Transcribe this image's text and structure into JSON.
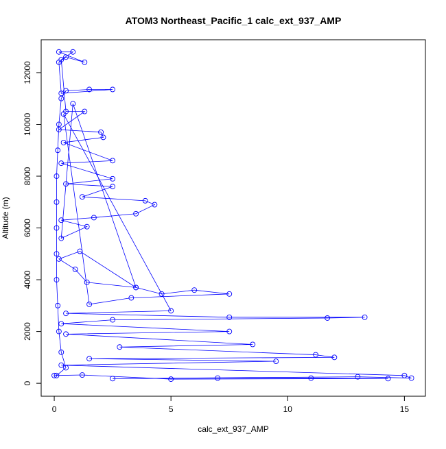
{
  "chart_data": {
    "type": "scatter",
    "connect": true,
    "marker": "circle",
    "title": "ATOM3 Northeast_Pacific_1 calc_ext_937_AMP",
    "xlabel": "calc_ext_937_AMP",
    "ylabel": "Altitude (m)",
    "color": "#0000ff",
    "xlim": [
      -0.56,
      15.9
    ],
    "ylim": [
      -500,
      13270
    ],
    "xticks": [
      0,
      5,
      10,
      15
    ],
    "yticks": [
      0,
      2000,
      4000,
      6000,
      8000,
      10000,
      12000
    ],
    "x": [
      0.1,
      0.5,
      0.3,
      0.2,
      0.15,
      0.1,
      0.1,
      0.1,
      0.1,
      0.1,
      0.15,
      0.2,
      0.3,
      0.5,
      1.5,
      2.5,
      0.3,
      0.2,
      0.5,
      1.3,
      0.2,
      0.8,
      0.3,
      0.5,
      1.3,
      0.2,
      2,
      2.1,
      0.4,
      2.5,
      0.3,
      2.5,
      0.5,
      2.5,
      1.2,
      3.9,
      4.3,
      3.5,
      1.7,
      0.3,
      1.4,
      0.3,
      0.8,
      3.5,
      1.1,
      0.2,
      0.9,
      1.4,
      3.5,
      4.6,
      6,
      7.5,
      3.3,
      1.5,
      0.4,
      5,
      0.5,
      7.5,
      13.3,
      11.7,
      2.5,
      0.3,
      7.5,
      0.5,
      8.5,
      2.8,
      11.2,
      12,
      1.5,
      9.5,
      0.3,
      15,
      15.3,
      13,
      2.5,
      7,
      11,
      14.3,
      5,
      1.2,
      0
    ],
    "values": [
      300,
      600,
      1200,
      2000,
      3000,
      4000,
      5000,
      6000,
      7000,
      8000,
      9000,
      10000,
      11000,
      11300,
      11350,
      11350,
      11200,
      12400,
      12600,
      12400,
      12800,
      12800,
      12500,
      10500,
      10500,
      9800,
      9700,
      9500,
      9300,
      8600,
      8500,
      7900,
      7700,
      7600,
      7200,
      7050,
      6900,
      6550,
      6400,
      6300,
      6050,
      5600,
      10800,
      3700,
      5100,
      4800,
      4400,
      3900,
      3700,
      3450,
      3600,
      3450,
      3300,
      3050,
      10400,
      2800,
      2700,
      2550,
      2550,
      2520,
      2450,
      2300,
      2000,
      1900,
      1500,
      1400,
      1100,
      1000,
      950,
      850,
      700,
      300,
      200,
      250,
      180,
      200,
      200,
      180,
      160,
      320,
      300
    ]
  }
}
